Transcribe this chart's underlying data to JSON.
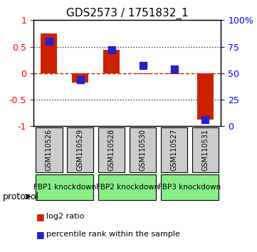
{
  "title": "GDS2573 / 1751832_1",
  "samples": [
    "GSM110526",
    "GSM110529",
    "GSM110528",
    "GSM110530",
    "GSM110527",
    "GSM110531"
  ],
  "log2_ratio": [
    0.75,
    -0.18,
    0.44,
    -0.02,
    -0.02,
    -0.88
  ],
  "percentile_rank": [
    0.8,
    0.44,
    0.72,
    0.57,
    0.54,
    0.06
  ],
  "protocols": [
    {
      "label": "FBP1 knockdown",
      "samples": [
        0,
        1
      ],
      "color": "#aaffaa"
    },
    {
      "label": "FBP2 knockdown",
      "samples": [
        2,
        3
      ],
      "color": "#aaffaa"
    },
    {
      "label": "FBP3 knockdown",
      "samples": [
        4,
        5
      ],
      "color": "#aaffaa"
    }
  ],
  "ylim_left": [
    -1,
    1
  ],
  "ylim_right": [
    0,
    100
  ],
  "bar_color_red": "#cc2200",
  "bar_color_blue": "#2222cc",
  "zero_line_color": "#cc2200",
  "dotted_line_color": "#333333",
  "legend_red_label": "log2 ratio",
  "legend_blue_label": "percentile rank within the sample",
  "sample_box_color": "#cccccc",
  "protocol_box_color": "#88ee88",
  "bar_width": 0.35
}
